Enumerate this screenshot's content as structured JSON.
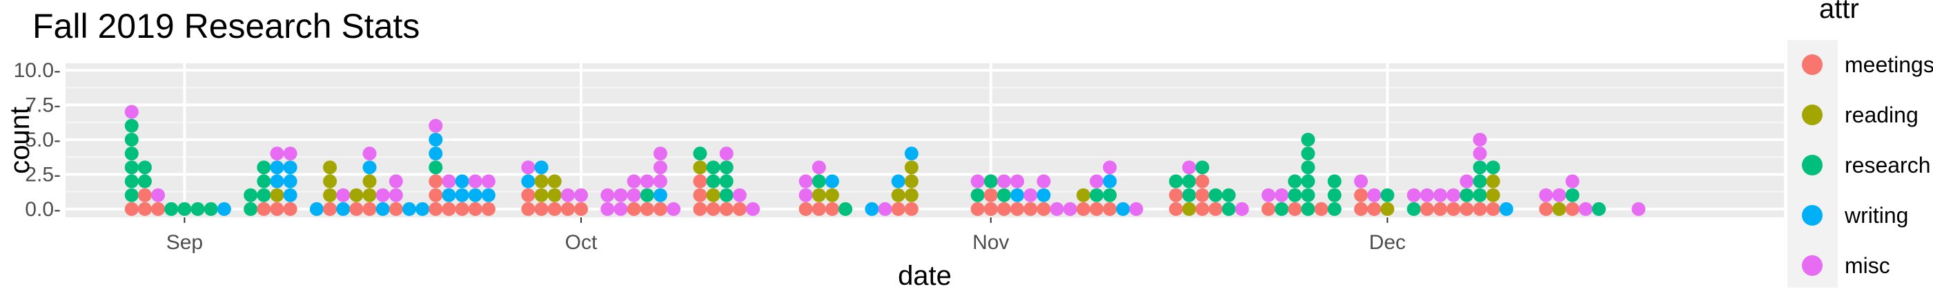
{
  "chart_data": {
    "type": "dotplot",
    "title": "Fall 2019 Research Stats",
    "xlabel": "date",
    "ylabel": "count",
    "x_axis": {
      "type": "date",
      "range": [
        "2019-08-23",
        "2019-12-31"
      ],
      "ticks": [
        "2019-09-01",
        "2019-10-01",
        "2019-11-01",
        "2019-12-01"
      ],
      "tick_labels": [
        "Sep",
        "Oct",
        "Nov",
        "Dec"
      ]
    },
    "y_axis": {
      "range": [
        -0.6,
        10.5
      ],
      "ticks": [
        0,
        2.5,
        5,
        7.5,
        10
      ],
      "tick_labels": [
        "0.0-",
        "2.5-",
        "5.0-",
        "7.5-",
        "10.0-"
      ]
    },
    "grid": true,
    "legend": {
      "title": "attr",
      "position": "right",
      "entries": [
        {
          "name": "meetings",
          "color": "#F8766D"
        },
        {
          "name": "reading",
          "color": "#A3A500"
        },
        {
          "name": "research",
          "color": "#00BF7D"
        },
        {
          "name": "writing",
          "color": "#00B0F6"
        },
        {
          "name": "misc",
          "color": "#E76BF3"
        }
      ]
    },
    "stack_order": [
      "meetings",
      "reading",
      "research",
      "writing",
      "misc"
    ],
    "points": [
      {
        "date": "2019-08-28",
        "meetings": 1,
        "research": 6,
        "misc": 1
      },
      {
        "date": "2019-08-29",
        "meetings": 2,
        "research": 2
      },
      {
        "date": "2019-08-30",
        "meetings": 1,
        "misc": 1
      },
      {
        "date": "2019-08-31",
        "research": 1
      },
      {
        "date": "2019-09-01",
        "research": 1
      },
      {
        "date": "2019-09-02",
        "research": 1
      },
      {
        "date": "2019-09-03",
        "research": 1
      },
      {
        "date": "2019-09-04",
        "writing": 1
      },
      {
        "date": "2019-09-06",
        "research": 2
      },
      {
        "date": "2019-09-07",
        "meetings": 1,
        "research": 3
      },
      {
        "date": "2019-09-08",
        "meetings": 1,
        "reading": 1,
        "writing": 2,
        "misc": 1
      },
      {
        "date": "2019-09-09",
        "meetings": 1,
        "writing": 3,
        "misc": 1
      },
      {
        "date": "2019-09-11",
        "writing": 1
      },
      {
        "date": "2019-09-12",
        "meetings": 1,
        "reading": 3
      },
      {
        "date": "2019-09-13",
        "writing": 1,
        "misc": 1
      },
      {
        "date": "2019-09-14",
        "meetings": 1,
        "reading": 1
      },
      {
        "date": "2019-09-15",
        "meetings": 1,
        "reading": 2,
        "writing": 1,
        "misc": 1
      },
      {
        "date": "2019-09-16",
        "writing": 1,
        "misc": 1
      },
      {
        "date": "2019-09-17",
        "meetings": 1,
        "misc": 2
      },
      {
        "date": "2019-09-18",
        "writing": 1
      },
      {
        "date": "2019-09-19",
        "writing": 1
      },
      {
        "date": "2019-09-20",
        "meetings": 3,
        "research": 1,
        "writing": 2,
        "misc": 1
      },
      {
        "date": "2019-09-21",
        "meetings": 1,
        "writing": 1,
        "misc": 1
      },
      {
        "date": "2019-09-22",
        "meetings": 1,
        "writing": 2
      },
      {
        "date": "2019-09-23",
        "meetings": 1,
        "writing": 1,
        "misc": 1
      },
      {
        "date": "2019-09-24",
        "meetings": 1,
        "writing": 1,
        "misc": 1
      },
      {
        "date": "2019-09-27",
        "meetings": 2,
        "writing": 1,
        "misc": 1
      },
      {
        "date": "2019-09-28",
        "meetings": 1,
        "reading": 2,
        "writing": 1
      },
      {
        "date": "2019-09-29",
        "meetings": 1,
        "reading": 2
      },
      {
        "date": "2019-09-30",
        "meetings": 1,
        "misc": 1
      },
      {
        "date": "2019-10-01",
        "meetings": 1,
        "misc": 1
      },
      {
        "date": "2019-10-03",
        "misc": 2
      },
      {
        "date": "2019-10-04",
        "misc": 2
      },
      {
        "date": "2019-10-05",
        "meetings": 1,
        "misc": 2
      },
      {
        "date": "2019-10-06",
        "meetings": 1,
        "research": 1,
        "misc": 1
      },
      {
        "date": "2019-10-07",
        "meetings": 1,
        "writing": 1,
        "misc": 3
      },
      {
        "date": "2019-10-08",
        "misc": 1
      },
      {
        "date": "2019-10-10",
        "meetings": 3,
        "reading": 1,
        "research": 1
      },
      {
        "date": "2019-10-11",
        "meetings": 1,
        "reading": 1,
        "research": 2
      },
      {
        "date": "2019-10-12",
        "meetings": 1,
        "research": 3,
        "misc": 1
      },
      {
        "date": "2019-10-13",
        "meetings": 1,
        "misc": 1
      },
      {
        "date": "2019-10-14",
        "misc": 1
      },
      {
        "date": "2019-10-18",
        "meetings": 1,
        "misc": 2
      },
      {
        "date": "2019-10-19",
        "meetings": 1,
        "reading": 1,
        "research": 1,
        "misc": 1
      },
      {
        "date": "2019-10-20",
        "meetings": 1,
        "reading": 1,
        "writing": 1
      },
      {
        "date": "2019-10-21",
        "research": 1
      },
      {
        "date": "2019-10-23",
        "writing": 1
      },
      {
        "date": "2019-10-24",
        "misc": 1
      },
      {
        "date": "2019-10-25",
        "meetings": 1,
        "reading": 1,
        "writing": 1
      },
      {
        "date": "2019-10-26",
        "meetings": 1,
        "reading": 3,
        "writing": 1
      },
      {
        "date": "2019-10-31",
        "meetings": 1,
        "research": 1,
        "misc": 1
      },
      {
        "date": "2019-11-01",
        "meetings": 2,
        "research": 1
      },
      {
        "date": "2019-11-02",
        "meetings": 1,
        "research": 1,
        "misc": 1
      },
      {
        "date": "2019-11-03",
        "meetings": 1,
        "writing": 1,
        "misc": 1
      },
      {
        "date": "2019-11-04",
        "meetings": 1,
        "misc": 1
      },
      {
        "date": "2019-11-05",
        "meetings": 1,
        "writing": 1,
        "misc": 1
      },
      {
        "date": "2019-11-06",
        "misc": 1
      },
      {
        "date": "2019-11-07",
        "misc": 1
      },
      {
        "date": "2019-11-08",
        "meetings": 1,
        "reading": 1
      },
      {
        "date": "2019-11-09",
        "meetings": 1,
        "research": 1,
        "misc": 1
      },
      {
        "date": "2019-11-10",
        "meetings": 1,
        "research": 1,
        "writing": 1,
        "misc": 1
      },
      {
        "date": "2019-11-11",
        "writing": 1
      },
      {
        "date": "2019-11-12",
        "misc": 1
      },
      {
        "date": "2019-11-15",
        "meetings": 2,
        "research": 1
      },
      {
        "date": "2019-11-16",
        "reading": 1,
        "research": 2,
        "misc": 1
      },
      {
        "date": "2019-11-17",
        "meetings": 3,
        "research": 1
      },
      {
        "date": "2019-11-18",
        "meetings": 1,
        "research": 1
      },
      {
        "date": "2019-11-19",
        "research": 2
      },
      {
        "date": "2019-11-20",
        "misc": 1
      },
      {
        "date": "2019-11-22",
        "meetings": 1,
        "misc": 1
      },
      {
        "date": "2019-11-23",
        "research": 1,
        "misc": 1
      },
      {
        "date": "2019-11-24",
        "meetings": 1,
        "research": 2
      },
      {
        "date": "2019-11-25",
        "research": 6
      },
      {
        "date": "2019-11-26",
        "meetings": 1
      },
      {
        "date": "2019-11-27",
        "research": 3
      },
      {
        "date": "2019-11-29",
        "meetings": 2,
        "misc": 1
      },
      {
        "date": "2019-11-30",
        "meetings": 1,
        "misc": 1
      },
      {
        "date": "2019-12-01",
        "reading": 1,
        "research": 1
      },
      {
        "date": "2019-12-03",
        "research": 1,
        "misc": 1
      },
      {
        "date": "2019-12-04",
        "meetings": 1,
        "misc": 1
      },
      {
        "date": "2019-12-05",
        "meetings": 1,
        "misc": 1
      },
      {
        "date": "2019-12-06",
        "meetings": 1,
        "misc": 1
      },
      {
        "date": "2019-12-07",
        "meetings": 1,
        "research": 1,
        "misc": 1
      },
      {
        "date": "2019-12-08",
        "meetings": 1,
        "research": 3,
        "misc": 2
      },
      {
        "date": "2019-12-09",
        "meetings": 1,
        "reading": 2,
        "research": 1
      },
      {
        "date": "2019-12-10",
        "writing": 1
      },
      {
        "date": "2019-12-13",
        "meetings": 1,
        "misc": 1
      },
      {
        "date": "2019-12-14",
        "reading": 1,
        "misc": 1
      },
      {
        "date": "2019-12-15",
        "meetings": 1,
        "research": 1,
        "misc": 1
      },
      {
        "date": "2019-12-16",
        "misc": 1
      },
      {
        "date": "2019-12-17",
        "research": 1
      },
      {
        "date": "2019-12-20",
        "misc": 1
      }
    ]
  }
}
